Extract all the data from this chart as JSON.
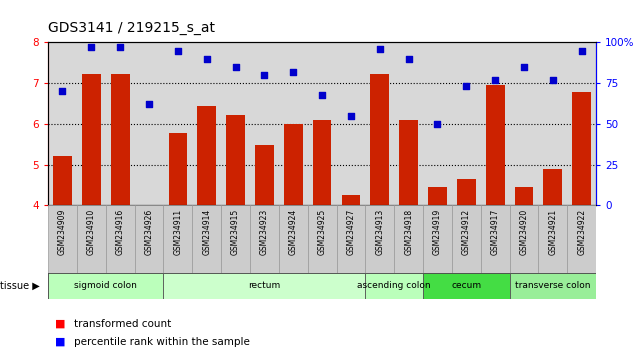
{
  "title": "GDS3141 / 219215_s_at",
  "samples": [
    "GSM234909",
    "GSM234910",
    "GSM234916",
    "GSM234926",
    "GSM234911",
    "GSM234914",
    "GSM234915",
    "GSM234923",
    "GSM234924",
    "GSM234925",
    "GSM234927",
    "GSM234913",
    "GSM234918",
    "GSM234919",
    "GSM234912",
    "GSM234917",
    "GSM234920",
    "GSM234921",
    "GSM234922"
  ],
  "transformed_count": [
    5.22,
    7.22,
    7.22,
    4.01,
    5.78,
    6.45,
    6.22,
    5.48,
    6.0,
    6.1,
    4.25,
    7.22,
    6.1,
    4.45,
    4.65,
    6.95,
    4.45,
    4.9,
    6.78
  ],
  "percentile_rank": [
    70,
    97,
    97,
    62,
    95,
    90,
    85,
    80,
    82,
    68,
    55,
    96,
    90,
    50,
    73,
    77,
    85,
    77,
    95
  ],
  "tissues": [
    {
      "label": "sigmoid colon",
      "start": 0,
      "end": 4,
      "color": "#bbffbb"
    },
    {
      "label": "rectum",
      "start": 4,
      "end": 11,
      "color": "#ccffcc"
    },
    {
      "label": "ascending colon",
      "start": 11,
      "end": 13,
      "color": "#bbffbb"
    },
    {
      "label": "cecum",
      "start": 13,
      "end": 16,
      "color": "#44dd44"
    },
    {
      "label": "transverse colon",
      "start": 16,
      "end": 19,
      "color": "#99ee99"
    }
  ],
  "ylim_left": [
    4,
    8
  ],
  "ylim_right": [
    0,
    100
  ],
  "yticks_left": [
    4,
    5,
    6,
    7,
    8
  ],
  "yticks_right": [
    0,
    25,
    50,
    75,
    100
  ],
  "bar_color": "#cc2200",
  "dot_color": "#0000cc",
  "bg_color": "#d8d8d8",
  "gridline_y": [
    5,
    6,
    7
  ]
}
